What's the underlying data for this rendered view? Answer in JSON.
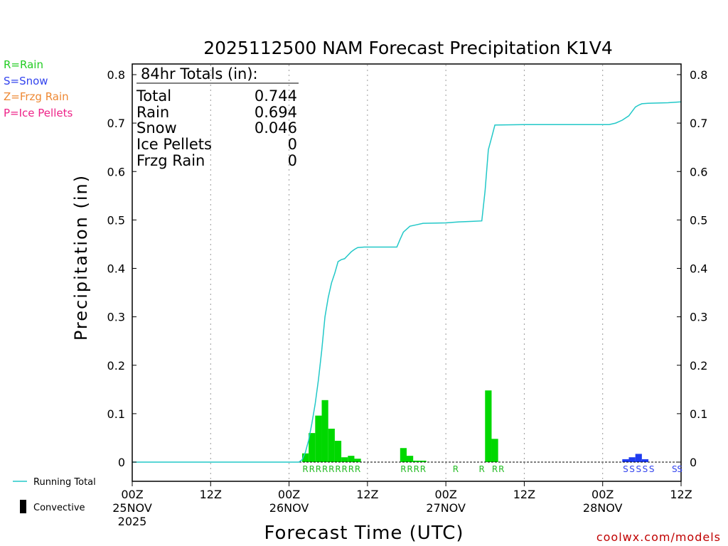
{
  "chart_data": {
    "type": "bar",
    "title": "2025112500 NAM Forecast Precipitation K1V4",
    "xlabel": "Forecast Time (UTC)",
    "ylabel": "Precipitation (in)",
    "ylim": [
      0,
      0.8
    ],
    "xlim_hours": [
      0,
      84
    ],
    "y_ticks": [
      "0",
      "0.1",
      "0.2",
      "0.3",
      "0.4",
      "0.5",
      "0.6",
      "0.7",
      "0.8"
    ],
    "x_ticks": [
      {
        "hour": 0,
        "label": "00Z",
        "date": "25NOV",
        "year": "2025"
      },
      {
        "hour": 12,
        "label": "12Z",
        "date": "",
        "year": ""
      },
      {
        "hour": 24,
        "label": "00Z",
        "date": "26NOV",
        "year": ""
      },
      {
        "hour": 36,
        "label": "12Z",
        "date": "",
        "year": ""
      },
      {
        "hour": 48,
        "label": "00Z",
        "date": "27NOV",
        "year": ""
      },
      {
        "hour": 60,
        "label": "12Z",
        "date": "",
        "year": ""
      },
      {
        "hour": 72,
        "label": "00Z",
        "date": "28NOV",
        "year": ""
      },
      {
        "hour": 84,
        "label": "12Z",
        "date": "",
        "year": ""
      }
    ],
    "bars": [
      {
        "hour": 26.5,
        "value": 0.018,
        "type": "R"
      },
      {
        "hour": 27.5,
        "value": 0.06,
        "type": "R"
      },
      {
        "hour": 28.5,
        "value": 0.096,
        "type": "R"
      },
      {
        "hour": 29.5,
        "value": 0.128,
        "type": "R"
      },
      {
        "hour": 30.5,
        "value": 0.069,
        "type": "R"
      },
      {
        "hour": 31.5,
        "value": 0.044,
        "type": "R"
      },
      {
        "hour": 32.5,
        "value": 0.01,
        "type": "R"
      },
      {
        "hour": 33.5,
        "value": 0.013,
        "type": "R"
      },
      {
        "hour": 34.5,
        "value": 0.007,
        "type": "R"
      },
      {
        "hour": 41.5,
        "value": 0.029,
        "type": "R"
      },
      {
        "hour": 42.5,
        "value": 0.013,
        "type": "R"
      },
      {
        "hour": 43.5,
        "value": 0.003,
        "type": "R"
      },
      {
        "hour": 44.5,
        "value": 0.003,
        "type": "R"
      },
      {
        "hour": 54.5,
        "value": 0.148,
        "type": "R"
      },
      {
        "hour": 55.5,
        "value": 0.048,
        "type": "R"
      },
      {
        "hour": 75.5,
        "value": 0.006,
        "type": "S"
      },
      {
        "hour": 76.5,
        "value": 0.01,
        "type": "S"
      },
      {
        "hour": 77.5,
        "value": 0.017,
        "type": "S"
      },
      {
        "hour": 78.5,
        "value": 0.006,
        "type": "S"
      }
    ],
    "running_total": [
      [
        0,
        0
      ],
      [
        24,
        0
      ],
      [
        25.5,
        0
      ],
      [
        26,
        0.005
      ],
      [
        26.5,
        0.02
      ],
      [
        27,
        0.045
      ],
      [
        27.5,
        0.08
      ],
      [
        28,
        0.12
      ],
      [
        28.5,
        0.17
      ],
      [
        29,
        0.23
      ],
      [
        29.5,
        0.3
      ],
      [
        30,
        0.34
      ],
      [
        30.5,
        0.37
      ],
      [
        31,
        0.39
      ],
      [
        31.5,
        0.414
      ],
      [
        32,
        0.418
      ],
      [
        32.5,
        0.42
      ],
      [
        33,
        0.427
      ],
      [
        33.5,
        0.434
      ],
      [
        34,
        0.439
      ],
      [
        34.5,
        0.443
      ],
      [
        35.5,
        0.444
      ],
      [
        40.5,
        0.444
      ],
      [
        41,
        0.46
      ],
      [
        41.5,
        0.475
      ],
      [
        42.5,
        0.487
      ],
      [
        43.5,
        0.49
      ],
      [
        44.5,
        0.493
      ],
      [
        48,
        0.494
      ],
      [
        50,
        0.496
      ],
      [
        52,
        0.497
      ],
      [
        53.5,
        0.498
      ],
      [
        54,
        0.56
      ],
      [
        54.5,
        0.645
      ],
      [
        55,
        0.67
      ],
      [
        55.5,
        0.696
      ],
      [
        60,
        0.697
      ],
      [
        73,
        0.697
      ],
      [
        74,
        0.7
      ],
      [
        75,
        0.706
      ],
      [
        76,
        0.715
      ],
      [
        77,
        0.733
      ],
      [
        77.5,
        0.737
      ],
      [
        78,
        0.74
      ],
      [
        79,
        0.741
      ],
      [
        82,
        0.742
      ],
      [
        84,
        0.744
      ]
    ],
    "ptype_labels": [
      {
        "hour": 26.5,
        "type": "R"
      },
      {
        "hour": 27.5,
        "type": "R"
      },
      {
        "hour": 28.5,
        "type": "R"
      },
      {
        "hour": 29.5,
        "type": "R"
      },
      {
        "hour": 30.5,
        "type": "R"
      },
      {
        "hour": 31.5,
        "type": "R"
      },
      {
        "hour": 32.5,
        "type": "R"
      },
      {
        "hour": 33.5,
        "type": "R"
      },
      {
        "hour": 34.5,
        "type": "R"
      },
      {
        "hour": 41.5,
        "type": "R"
      },
      {
        "hour": 42.5,
        "type": "R"
      },
      {
        "hour": 43.5,
        "type": "R"
      },
      {
        "hour": 44.5,
        "type": "R"
      },
      {
        "hour": 49.5,
        "type": "R"
      },
      {
        "hour": 53.5,
        "type": "R"
      },
      {
        "hour": 55.5,
        "type": "R"
      },
      {
        "hour": 56.5,
        "type": "R"
      },
      {
        "hour": 75.5,
        "type": "S"
      },
      {
        "hour": 76.5,
        "type": "S"
      },
      {
        "hour": 77.5,
        "type": "S"
      },
      {
        "hour": 78.5,
        "type": "S"
      },
      {
        "hour": 79.5,
        "type": "S"
      },
      {
        "hour": 83,
        "type": "S"
      },
      {
        "hour": 83.8,
        "type": "S"
      }
    ],
    "totals_box": {
      "heading": "84hr Totals (in):",
      "rows": [
        {
          "label": "Total",
          "value": "0.744"
        },
        {
          "label": "Rain",
          "value": "0.694"
        },
        {
          "label": "Snow",
          "value": "0.046"
        },
        {
          "label": "Ice Pellets",
          "value": "0"
        },
        {
          "label": "Frzg Rain",
          "value": "0"
        }
      ]
    },
    "type_legend": [
      {
        "text": "R=Rain",
        "color": "#22cc22"
      },
      {
        "text": "S=Snow",
        "color": "#3344ee"
      },
      {
        "text": "Z=Frzg Rain",
        "color": "#ee8833"
      },
      {
        "text": "P=Ice Pellets",
        "color": "#ee2288"
      }
    ],
    "series_legend": [
      {
        "text": "Running Total",
        "color": "#22c8c8",
        "symbol": "line"
      },
      {
        "text": "Convective",
        "color": "#000000",
        "symbol": "bar"
      }
    ],
    "colors": {
      "rain": "#00d800",
      "snow": "#1f3cf0",
      "total_line": "#22c8c8"
    }
  },
  "credit": "coolwx.com/models"
}
